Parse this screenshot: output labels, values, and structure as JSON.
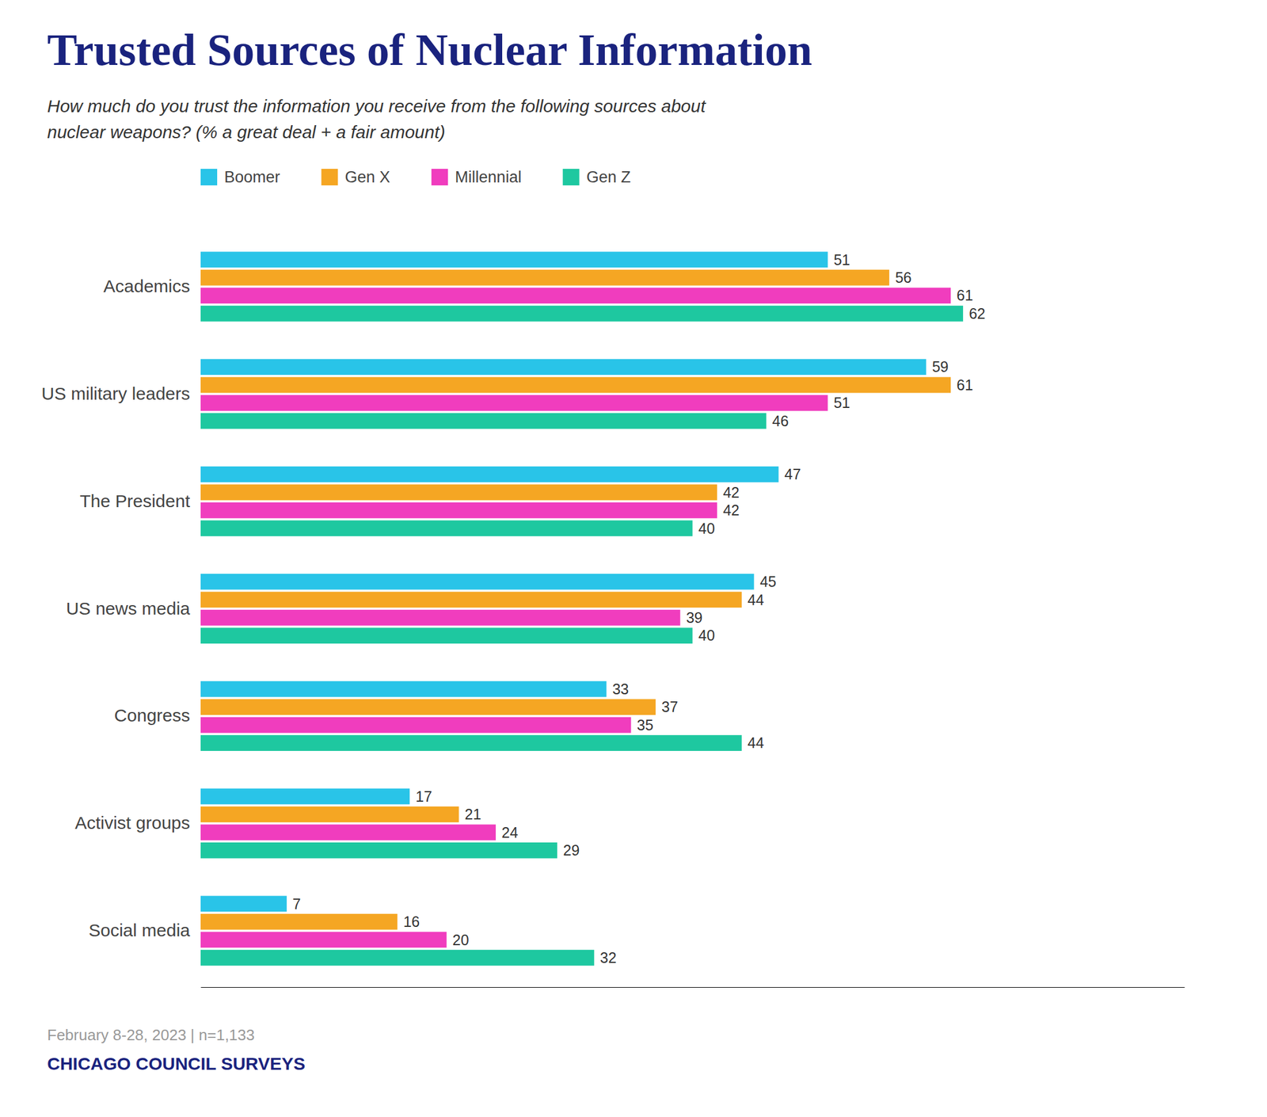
{
  "chart_data": {
    "type": "bar",
    "orientation": "horizontal",
    "title": "Trusted Sources of Nuclear Information",
    "subtitle": "How much do you trust the information you receive from the following sources about\nnuclear weapons? (% a great deal + a fair amount)",
    "footnote": "February 8-28, 2023 | n=1,133",
    "source": "CHICAGO COUNCIL SURVEYS",
    "categories": [
      "Academics",
      "US military leaders",
      "The President",
      "US news media",
      "Congress",
      "Activist groups",
      "Social media"
    ],
    "series": [
      {
        "name": "Boomer",
        "color": "#29c4e8",
        "values": [
          51,
          59,
          47,
          45,
          33,
          17,
          7
        ]
      },
      {
        "name": "Gen X",
        "color": "#f5a623",
        "values": [
          56,
          61,
          42,
          44,
          37,
          21,
          16
        ]
      },
      {
        "name": "Millennial",
        "color": "#f03dbe",
        "values": [
          61,
          51,
          42,
          39,
          35,
          24,
          20
        ]
      },
      {
        "name": "Gen Z",
        "color": "#1ec8a0",
        "values": [
          62,
          46,
          40,
          40,
          44,
          29,
          32
        ]
      }
    ],
    "xlim": [
      0,
      80
    ],
    "data_labels": true,
    "tick_labels": "y",
    "legend": "top",
    "grid": false
  }
}
